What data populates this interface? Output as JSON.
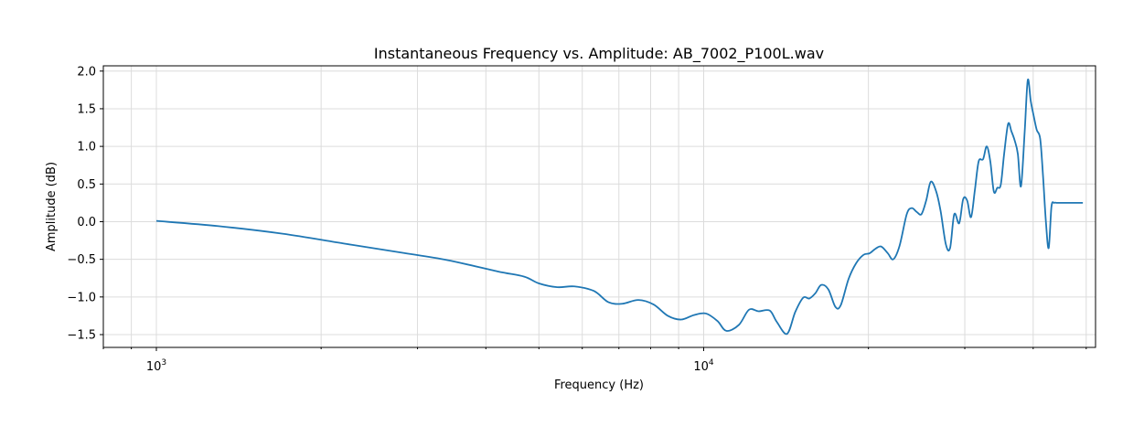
{
  "chart_data": {
    "type": "line",
    "title": "Instantaneous Frequency vs. Amplitude: AB_7002_P100L.wav",
    "xlabel": "Frequency (Hz)",
    "ylabel": "Amplitude (dB)",
    "xscale": "log",
    "xlim": [
      800,
      52000
    ],
    "ylim": [
      -1.67,
      2.07
    ],
    "grid": true,
    "x_major_ticks": [
      {
        "value": 1000,
        "base": "10",
        "exp": "3"
      },
      {
        "value": 10000,
        "base": "10",
        "exp": "4"
      }
    ],
    "y_ticks": [
      {
        "value": 2.0,
        "label": "2.0"
      },
      {
        "value": 1.5,
        "label": "1.5"
      },
      {
        "value": 1.0,
        "label": "1.0"
      },
      {
        "value": 0.5,
        "label": "0.5"
      },
      {
        "value": 0.0,
        "label": "0.0"
      },
      {
        "value": -0.5,
        "label": "−0.5"
      },
      {
        "value": -1.0,
        "label": "−1.0"
      },
      {
        "value": -1.5,
        "label": "−1.5"
      }
    ],
    "line_color": "#1f77b4",
    "series": [
      {
        "x": [
          1000,
          1300,
          1700,
          2200,
          2800,
          3400,
          4200,
          4700,
          5000,
          5400,
          5800,
          6300,
          6700,
          7100,
          7600,
          8100,
          8600,
          9100,
          9600,
          10100,
          10600,
          11000,
          11600,
          12100,
          12600,
          13200,
          13600,
          14200,
          14700,
          15200,
          15600,
          16000,
          16400,
          16900,
          17400,
          17800,
          18400,
          19000,
          19600,
          20100,
          20600,
          21100,
          21700,
          22200,
          22800,
          23500,
          24000,
          24500,
          25000,
          25500,
          26000,
          26600,
          27100,
          27700,
          28200,
          28700,
          29300,
          29800,
          30300,
          30800,
          31300,
          31800,
          32400,
          32900,
          33400,
          33900,
          34400,
          34900,
          35400,
          36000,
          36500,
          37000,
          37500,
          38000,
          38600,
          39100,
          39600,
          40100,
          40600,
          41200,
          41700,
          42200,
          42700,
          43200,
          43700,
          44200,
          44800,
          45300,
          45800,
          46300,
          46800,
          47300,
          47800,
          48400,
          48900,
          49300
        ],
        "y": [
          0.01,
          -0.06,
          -0.16,
          -0.29,
          -0.41,
          -0.51,
          -0.66,
          -0.73,
          -0.82,
          -0.87,
          -0.86,
          -0.92,
          -1.07,
          -1.09,
          -1.04,
          -1.1,
          -1.25,
          -1.3,
          -1.24,
          -1.22,
          -1.32,
          -1.45,
          -1.37,
          -1.17,
          -1.19,
          -1.18,
          -1.33,
          -1.49,
          -1.2,
          -1.01,
          -1.02,
          -0.95,
          -0.84,
          -0.9,
          -1.13,
          -1.11,
          -0.76,
          -0.55,
          -0.44,
          -0.42,
          -0.36,
          -0.33,
          -0.42,
          -0.5,
          -0.32,
          0.1,
          0.18,
          0.13,
          0.1,
          0.28,
          0.53,
          0.4,
          0.14,
          -0.3,
          -0.35,
          0.1,
          -0.02,
          0.3,
          0.28,
          0.06,
          0.42,
          0.8,
          0.83,
          1.0,
          0.8,
          0.4,
          0.45,
          0.49,
          0.9,
          1.3,
          1.2,
          1.08,
          0.9,
          0.47,
          1.2,
          1.88,
          1.6,
          1.4,
          1.22,
          1.1,
          0.6,
          0.0,
          -0.35,
          0.2,
          0.25,
          0.25,
          0.25,
          0.25,
          0.25,
          0.25,
          0.25,
          0.25,
          0.25,
          0.25,
          0.25,
          0.25
        ]
      }
    ]
  }
}
